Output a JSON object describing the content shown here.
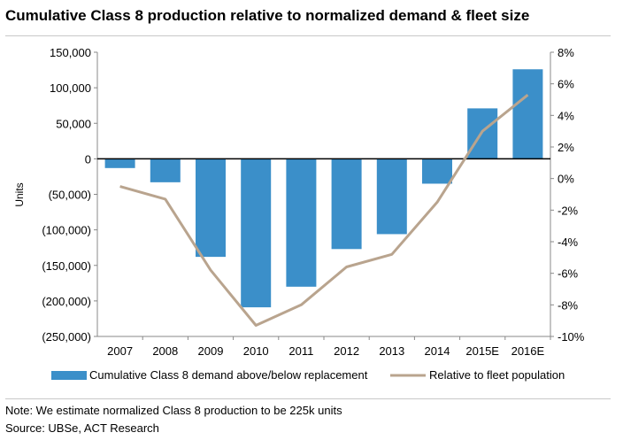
{
  "chart_data": {
    "type": "bar",
    "title": "Cumulative Class 8 production relative to normalized demand & fleet size",
    "categories": [
      "2007",
      "2008",
      "2009",
      "2010",
      "2011",
      "2012",
      "2013",
      "2014",
      "2015E",
      "2016E"
    ],
    "ylabel": "Units",
    "ylim": [
      -250000,
      150000
    ],
    "yticks": [
      "150,000",
      "100,000",
      "50,000",
      "0",
      "(50,000)",
      "(100,000)",
      "(150,000)",
      "(200,000)",
      "(250,000)"
    ],
    "y2lim": [
      -10,
      8
    ],
    "y2ticks": [
      "8%",
      "6%",
      "4%",
      "2%",
      "0%",
      "-2%",
      "-4%",
      "-6%",
      "-8%",
      "-10%"
    ],
    "grid": false,
    "legend_position": "bottom",
    "series": [
      {
        "name": "Cumulative Class 8 demand above/below replacement",
        "type": "bar",
        "axis": "left",
        "color": "#3b8fc9",
        "values": [
          -13000,
          -33000,
          -138000,
          -209000,
          -180000,
          -127000,
          -106000,
          -35000,
          71000,
          126000
        ]
      },
      {
        "name": "Relative to fleet population",
        "type": "line",
        "axis": "right",
        "color": "#b9a48e",
        "values": [
          -0.5,
          -1.3,
          -5.8,
          -9.3,
          -8.0,
          -5.6,
          -4.8,
          -1.5,
          3.0,
          5.3
        ]
      }
    ]
  },
  "footer": {
    "note": "Note: We estimate normalized Class 8 production to be 225k units",
    "source": "Source: UBSe, ACT Research"
  }
}
